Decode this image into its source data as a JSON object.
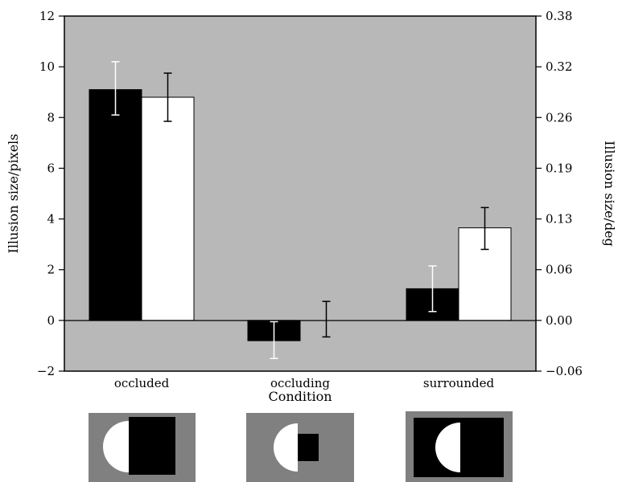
{
  "chart_data": {
    "type": "bar",
    "categories": [
      "occluded",
      "occluding",
      "surrounded"
    ],
    "xlabel": "Condition",
    "ylabel": "Illusion size/pixels",
    "ylabel_right": "Illusion size/deg",
    "ylim": [
      -2,
      12
    ],
    "yticks": [
      -2,
      0,
      2,
      4,
      6,
      8,
      10,
      12
    ],
    "ylim_right": [
      -0.06,
      0.38
    ],
    "yticks_right": [
      "−0.06",
      "0.00",
      "0.06",
      "0.13",
      "0.19",
      "0.26",
      "0.32",
      "0.38"
    ],
    "series": [
      {
        "color": "#000000",
        "values": [
          9.1,
          -0.8,
          1.25
        ],
        "err_low": [
          8.1,
          -1.5,
          0.35
        ],
        "err_high": [
          10.2,
          -0.05,
          2.15
        ],
        "err_color": "#ffffff"
      },
      {
        "color": "#ffffff",
        "values": [
          8.8,
          0.0,
          3.65
        ],
        "err_low": [
          7.85,
          -0.65,
          2.8
        ],
        "err_high": [
          9.75,
          0.75,
          4.45
        ],
        "err_color": "#000000"
      }
    ],
    "plot_background": "#b8b8b8",
    "grid": false,
    "legend": "none"
  },
  "stimuli": [
    {
      "condition": "occluded",
      "background": "#808080",
      "shape_color": "#ffffff",
      "occluder_color": "#000000"
    },
    {
      "condition": "occluding",
      "background": "#808080",
      "shape_color": "#ffffff",
      "occluder_color": "#000000"
    },
    {
      "condition": "surrounded",
      "background": "#808080",
      "shape_color": "#ffffff",
      "occluder_color": "#000000"
    }
  ]
}
